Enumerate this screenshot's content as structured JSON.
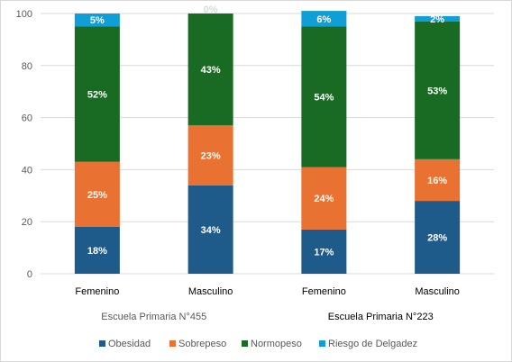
{
  "chart_data": {
    "type": "bar",
    "stacked": true,
    "title": "",
    "xlabel": "",
    "ylabel": "",
    "ylim": [
      0,
      100
    ],
    "yticks": [
      0,
      20,
      40,
      60,
      80,
      100
    ],
    "grid": true,
    "legend_position": "bottom",
    "categories": [
      "Femenino",
      "Masculino",
      "Femenino",
      "Masculino"
    ],
    "groups": [
      {
        "label": "Escuela Primaria N°455",
        "categories": [
          0,
          1
        ]
      },
      {
        "label": "Escuela Primaria N°223",
        "categories": [
          2,
          3
        ]
      }
    ],
    "series": [
      {
        "name": "Obesidad",
        "color": "#1f5b8a",
        "values": [
          18,
          34,
          17,
          28
        ],
        "labels": [
          "18%",
          "34%",
          "17%",
          "28%"
        ]
      },
      {
        "name": "Sobrepeso",
        "color": "#e97132",
        "values": [
          25,
          23,
          24,
          16
        ],
        "labels": [
          "25%",
          "23%",
          "24%",
          "16%"
        ]
      },
      {
        "name": "Normopeso",
        "color": "#196b24",
        "values": [
          52,
          43,
          54,
          53
        ],
        "labels": [
          "52%",
          "43%",
          "54%",
          "53%"
        ]
      },
      {
        "name": "Riesgo de Delgadez",
        "color": "#0f9ed5",
        "values": [
          5,
          0,
          6,
          2
        ],
        "labels": [
          "5%",
          "0%",
          "6%",
          "2%"
        ]
      }
    ]
  }
}
